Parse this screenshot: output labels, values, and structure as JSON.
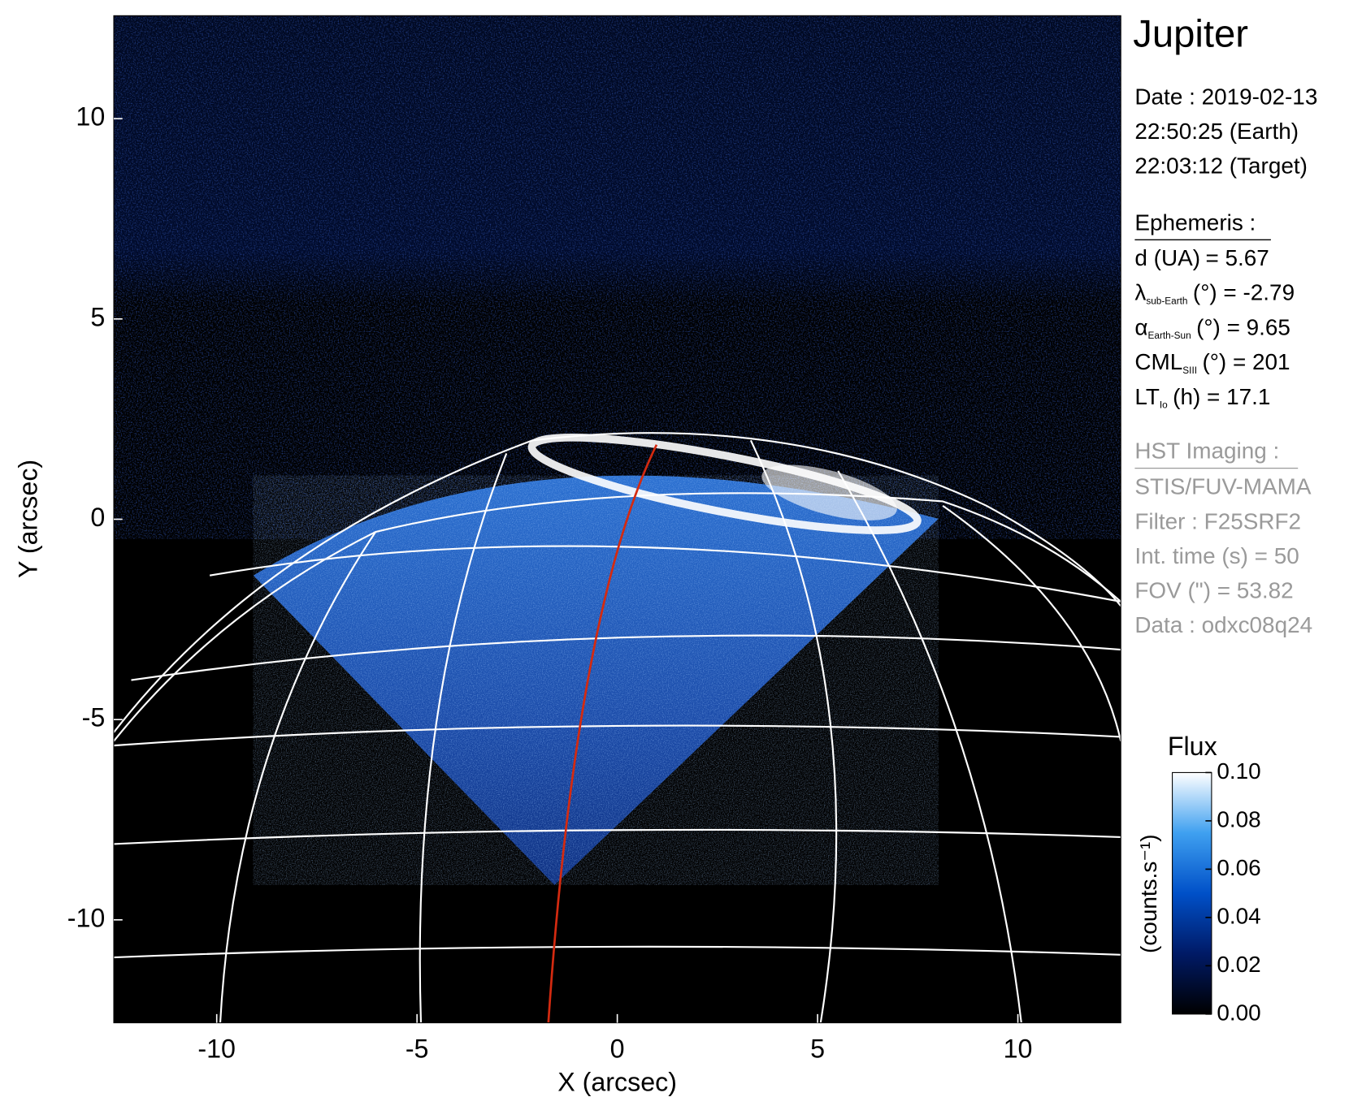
{
  "chart_data": {
    "type": "image",
    "title": "Jupiter",
    "xlabel": "X (arcsec)",
    "ylabel": "Y (arcsec)",
    "xlim": [
      -12.57,
      12.57
    ],
    "ylim": [
      -12.57,
      12.57
    ],
    "xticks": [
      -10,
      -5,
      0,
      5,
      10
    ],
    "yticks": [
      -10,
      -5,
      0,
      5,
      10
    ],
    "date": [
      "Date : 2019-02-13",
      "22:50:25 (Earth)",
      "22:03:12 (Target)"
    ],
    "ephemeris": {
      "title": "Ephemeris :",
      "rows": [
        {
          "label": "d (UA)",
          "value": "= 5.67"
        },
        {
          "label": "λ",
          "subscript": "sub-Earth",
          "value": "(°) = -2.79"
        },
        {
          "label": "α",
          "subscript": "Earth-Sun",
          "value": "(°) = 9.65"
        },
        {
          "label": "CML",
          "subscript": "SIII",
          "value": "(°) = 201"
        },
        {
          "label": "LT",
          "subscript": "Io",
          "value": "(h) = 17.1"
        }
      ]
    },
    "instrument": {
      "title": "HST Imaging :",
      "lines": [
        "STIS/FUV-MAMA",
        "Filter : F25SRF2",
        "Int. time (s) = 50",
        "FOV (\") = 53.82",
        "Data : odxc08q24"
      ]
    },
    "colorbar": {
      "title": "Flux",
      "label": "(counts.s⁻¹)",
      "lim": [
        0,
        0.1
      ],
      "ticks": [
        {
          "value": 0,
          "label": "0.00"
        },
        {
          "value": 0.02,
          "label": "0.02"
        },
        {
          "value": 0.04,
          "label": "0.04"
        },
        {
          "value": 0.06,
          "label": "0.06"
        },
        {
          "value": 0.08,
          "label": "0.08"
        },
        {
          "value": 0.1,
          "label": "0.10"
        }
      ],
      "colors": [
        "#000000",
        "#001a66",
        "#0050c8",
        "#3fa0f0",
        "#ffffff"
      ]
    }
  }
}
